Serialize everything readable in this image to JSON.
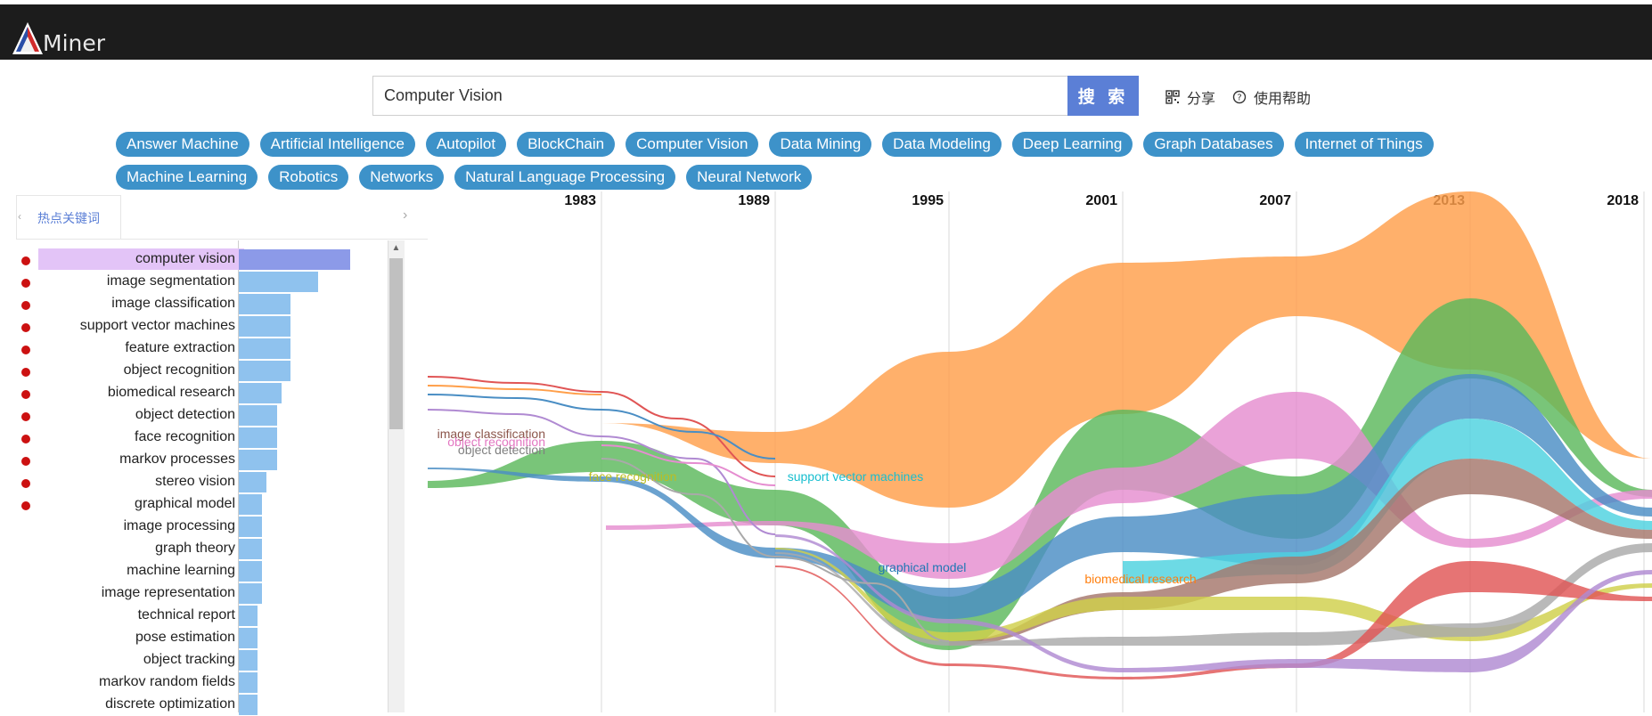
{
  "app": {
    "logo_text": "Miner"
  },
  "search": {
    "value": "Computer Vision",
    "button_label": "搜 索"
  },
  "actions": {
    "share_label": "分享",
    "help_label": "使用帮助"
  },
  "tags": [
    [
      "Answer Machine",
      "Artificial Intelligence",
      "Autopilot",
      "BlockChain",
      "Computer Vision",
      "Data Mining",
      "Data Modeling",
      "Deep Learning",
      "Graph Databases",
      "Internet of Things"
    ],
    [
      "Machine Learning",
      "Robotics",
      "Networks",
      "Natural Language Processing",
      "Neural Network"
    ]
  ],
  "panel": {
    "tab_label": "热点关键词",
    "keywords": [
      {
        "label": "computer vision",
        "value": 1.0
      },
      {
        "label": "image segmentation",
        "value": 0.71
      },
      {
        "label": "image classification",
        "value": 0.46
      },
      {
        "label": "support vector machines",
        "value": 0.46
      },
      {
        "label": "feature extraction",
        "value": 0.46
      },
      {
        "label": "object recognition",
        "value": 0.46
      },
      {
        "label": "biomedical research",
        "value": 0.38
      },
      {
        "label": "object detection",
        "value": 0.34
      },
      {
        "label": "face recognition",
        "value": 0.34
      },
      {
        "label": "markov processes",
        "value": 0.34
      },
      {
        "label": "stereo vision",
        "value": 0.25
      },
      {
        "label": "graphical model",
        "value": 0.21
      },
      {
        "label": "image processing",
        "value": 0.21
      },
      {
        "label": "graph theory",
        "value": 0.21
      },
      {
        "label": "machine learning",
        "value": 0.21
      },
      {
        "label": "image representation",
        "value": 0.21
      },
      {
        "label": "technical report",
        "value": 0.17
      },
      {
        "label": "pose estimation",
        "value": 0.17
      },
      {
        "label": "object tracking",
        "value": 0.17
      },
      {
        "label": "markov random fields",
        "value": 0.17
      },
      {
        "label": "discrete optimization",
        "value": 0.17
      }
    ],
    "red_dot_count": 12
  },
  "river": {
    "years": [
      "1983",
      "1989",
      "1995",
      "2001",
      "2007",
      "2013",
      "2018"
    ],
    "labels": [
      {
        "text": "image classification",
        "color": "#8c564b"
      },
      {
        "text": "object recognition",
        "color": "#e377c2"
      },
      {
        "text": "object detection",
        "color": "#7f7f7f"
      },
      {
        "text": "face recognition",
        "color": "#bcbd22"
      },
      {
        "text": "support vector machines",
        "color": "#17becf"
      },
      {
        "text": "graphical model",
        "color": "#1f77b4"
      },
      {
        "text": "biomedical research",
        "color": "#ff7f0e"
      }
    ],
    "colors": {
      "orange": "#ff9f4a",
      "green": "#5cb85c",
      "blue": "#4a8ec4",
      "cyan": "#4dd2df",
      "pink": "#e58dd0",
      "brown": "#a5766b",
      "red": "#e05555",
      "olive": "#cfd04a",
      "gray": "#a9a9a9",
      "purple": "#b08ad2"
    }
  },
  "colors": {
    "accent": "#5b7fd6",
    "tag": "#3d92c9",
    "header": "#1c1c1c"
  }
}
